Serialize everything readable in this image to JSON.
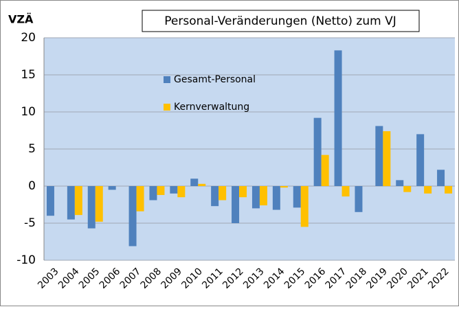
{
  "chart_data": {
    "type": "bar",
    "title": "Personal-Veränderungen (Netto) zum VJ",
    "y_label": "VZÄ",
    "categories": [
      "2003",
      "2004",
      "2005",
      "2006",
      "2007",
      "2008",
      "2009",
      "2010",
      "2011",
      "2012",
      "2013",
      "2014",
      "2015",
      "2016",
      "2017",
      "2018",
      "2019",
      "2020",
      "2021",
      "2022"
    ],
    "series": [
      {
        "name": "Gesamt-Personal",
        "color": "#4f81bd",
        "values": [
          -4.0,
          -4.5,
          -5.7,
          -0.5,
          -8.1,
          -1.9,
          -1.0,
          1.0,
          -2.7,
          -5.0,
          -3.0,
          -3.2,
          -2.9,
          9.2,
          18.3,
          -3.5,
          8.1,
          0.8,
          7.0,
          2.2
        ]
      },
      {
        "name": "Kernverwaltung",
        "color": "#ffc000",
        "values": [
          0,
          -3.9,
          -4.8,
          0,
          -3.4,
          -1.2,
          -1.5,
          0.3,
          -1.9,
          -1.5,
          -2.6,
          -0.2,
          -5.5,
          4.2,
          -1.4,
          0,
          7.4,
          -0.8,
          -1.0,
          -1.0
        ]
      }
    ],
    "ylim": [
      -10,
      20
    ],
    "yticks": [
      -10,
      -5,
      0,
      5,
      10,
      15,
      20
    ],
    "grid": true,
    "legend": "inside"
  }
}
